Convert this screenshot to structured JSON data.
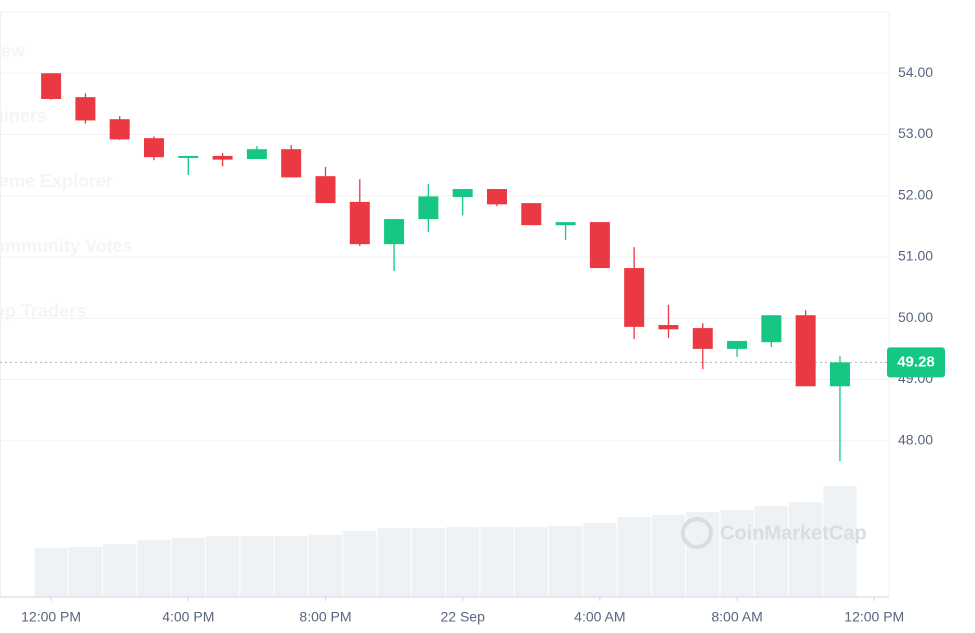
{
  "chart_data": {
    "type": "candlestick",
    "background_menu": [
      "iew",
      "ainers",
      "leme Explorer",
      "ommunity Votes",
      "op Traders"
    ],
    "watermark": "CoinMarketCap",
    "x": [
      0,
      1,
      2,
      3,
      4,
      5,
      6,
      7,
      8,
      9,
      10,
      11,
      12,
      13,
      14,
      15,
      16,
      17,
      18,
      19,
      20,
      21,
      22,
      23
    ],
    "open": [
      54.0,
      53.61,
      53.25,
      52.94,
      52.63,
      52.65,
      52.6,
      52.76,
      52.32,
      51.9,
      51.21,
      51.62,
      51.98,
      52.11,
      51.88,
      51.52,
      51.57,
      50.82,
      49.89,
      49.84,
      49.5,
      49.61,
      50.05,
      48.89
    ],
    "high": [
      54.0,
      53.67,
      53.3,
      52.97,
      52.65,
      52.7,
      52.81,
      52.83,
      52.47,
      52.27,
      51.62,
      52.19,
      52.11,
      52.11,
      51.88,
      51.57,
      51.57,
      51.16,
      50.22,
      49.92,
      49.63,
      50.05,
      50.13,
      49.38
    ],
    "low": [
      53.57,
      53.18,
      52.91,
      52.58,
      52.34,
      52.48,
      52.6,
      52.3,
      51.88,
      51.18,
      50.77,
      51.41,
      51.68,
      51.83,
      51.52,
      51.28,
      50.82,
      49.66,
      49.68,
      49.17,
      49.37,
      49.53,
      48.89,
      47.67
    ],
    "close": [
      53.58,
      53.23,
      52.92,
      52.63,
      52.65,
      52.59,
      52.76,
      52.3,
      51.88,
      51.21,
      51.62,
      51.99,
      52.11,
      51.86,
      51.52,
      51.57,
      50.82,
      49.86,
      49.82,
      49.5,
      49.63,
      50.05,
      48.89,
      49.28
    ],
    "volume": [
      49,
      50,
      53,
      57,
      59,
      61,
      61,
      61,
      62,
      66,
      69,
      69,
      70,
      70,
      70,
      71,
      74,
      80,
      82,
      85,
      87,
      91,
      95,
      111
    ],
    "up_color": "#16c784",
    "down_color": "#ea3943",
    "volume_color": "#eff2f5",
    "current_price": {
      "value": 49.28,
      "label": "49.28"
    },
    "ylim": [
      45.45,
      55.0
    ],
    "yticks": [
      {
        "value": 48,
        "label": "48.00"
      },
      {
        "value": 49,
        "label": "49.00"
      },
      {
        "value": 50,
        "label": "50.00"
      },
      {
        "value": 51,
        "label": "51.00"
      },
      {
        "value": 52,
        "label": "52.00"
      },
      {
        "value": 53,
        "label": "53.00"
      },
      {
        "value": 54,
        "label": "54.00"
      }
    ],
    "xlim": [
      -1.49,
      24.43
    ],
    "xticks": [
      {
        "value": 0,
        "label": "12:00 PM"
      },
      {
        "value": 4,
        "label": "4:00 PM"
      },
      {
        "value": 8,
        "label": "8:00 PM"
      },
      {
        "value": 12,
        "label": "22 Sep"
      },
      {
        "value": 16,
        "label": "4:00 AM"
      },
      {
        "value": 20,
        "label": "8:00 AM"
      },
      {
        "value": 24,
        "label": "12:00 PM"
      }
    ],
    "grid": true
  }
}
